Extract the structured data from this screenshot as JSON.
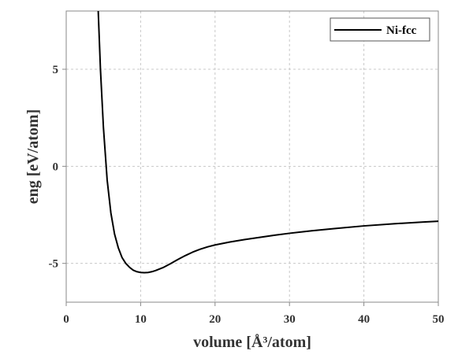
{
  "chart_data": {
    "type": "line",
    "title": "",
    "xlabel": "volume [Å³/atom]",
    "ylabel": "eng [eV/atom]",
    "xlim": [
      0,
      50
    ],
    "ylim": [
      -7,
      8
    ],
    "xticks": [
      0,
      10,
      20,
      30,
      40,
      50
    ],
    "yticks": [
      -5,
      0,
      5
    ],
    "grid": true,
    "legend_position": "top-right",
    "series": [
      {
        "name": "Ni-fcc",
        "color": "#000000",
        "x": [
          4.3,
          4.6,
          5.0,
          5.5,
          6.0,
          6.5,
          7.0,
          7.5,
          8.0,
          8.5,
          9.0,
          9.5,
          10.0,
          10.5,
          11.0,
          11.5,
          12.0,
          13.0,
          14.0,
          15.0,
          16.0,
          17.0,
          18.0,
          19.0,
          20.0,
          22.0,
          24.0,
          26.0,
          28.0,
          30.0,
          33.0,
          36.0,
          40.0,
          44.0,
          48.0,
          50.0
        ],
        "y": [
          8.0,
          5.0,
          2.0,
          -0.7,
          -2.4,
          -3.5,
          -4.2,
          -4.7,
          -5.0,
          -5.2,
          -5.35,
          -5.43,
          -5.47,
          -5.48,
          -5.47,
          -5.43,
          -5.37,
          -5.22,
          -5.02,
          -4.8,
          -4.6,
          -4.42,
          -4.27,
          -4.15,
          -4.05,
          -3.9,
          -3.77,
          -3.66,
          -3.55,
          -3.45,
          -3.32,
          -3.21,
          -3.07,
          -2.96,
          -2.87,
          -2.83
        ]
      }
    ]
  }
}
